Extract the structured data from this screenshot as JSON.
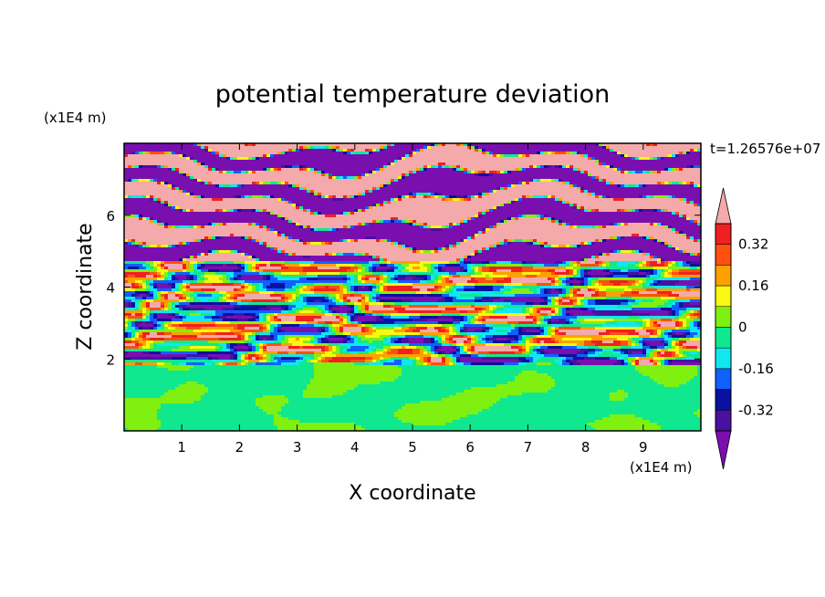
{
  "chart_data": {
    "type": "heatmap",
    "title": "potential temperature deviation",
    "xlabel": "X coordinate",
    "ylabel": "Z coordinate",
    "x_unit": "(x1E4 m)",
    "y_unit": "(x1E4 m)",
    "time_label": "t=1.26576e+07",
    "xlim": [
      0,
      10
    ],
    "ylim": [
      0,
      8
    ],
    "x_ticks": [
      1,
      2,
      3,
      4,
      5,
      6,
      7,
      8,
      9
    ],
    "y_ticks": [
      2,
      4,
      6
    ],
    "colorbar": {
      "levels": [
        -0.4,
        -0.32,
        -0.24,
        -0.16,
        -0.08,
        0,
        0.08,
        0.16,
        0.24,
        0.32,
        0.4
      ],
      "tick_labels": [
        "0.32",
        "0.16",
        "0",
        "-0.16",
        "-0.32"
      ],
      "tick_values": [
        0.32,
        0.16,
        0,
        -0.16,
        -0.32
      ],
      "colors": [
        "#7a0fb0",
        "#4a10a0",
        "#0a10a0",
        "#1060ff",
        "#10e8f0",
        "#10e890",
        "#80f010",
        "#f8f810",
        "#ffa000",
        "#ff5010",
        "#f02020",
        "#f4aaaa"
      ],
      "extend": "both"
    },
    "regions": [
      {
        "z_range": [
          0,
          1.8
        ],
        "pattern": "blotches",
        "values": [
          0,
          0.05
        ]
      },
      {
        "z_range": [
          1.8,
          3.0
        ],
        "pattern": "turbulent bands",
        "values": [
          -0.4,
          0.4
        ]
      },
      {
        "z_range": [
          3.0,
          4.7
        ],
        "pattern": "turbulent bands",
        "values": [
          -0.4,
          0.4
        ]
      },
      {
        "z_range": [
          4.7,
          8.0
        ],
        "pattern": "alternating stripes",
        "values": [
          -0.4,
          0.4
        ]
      }
    ]
  }
}
